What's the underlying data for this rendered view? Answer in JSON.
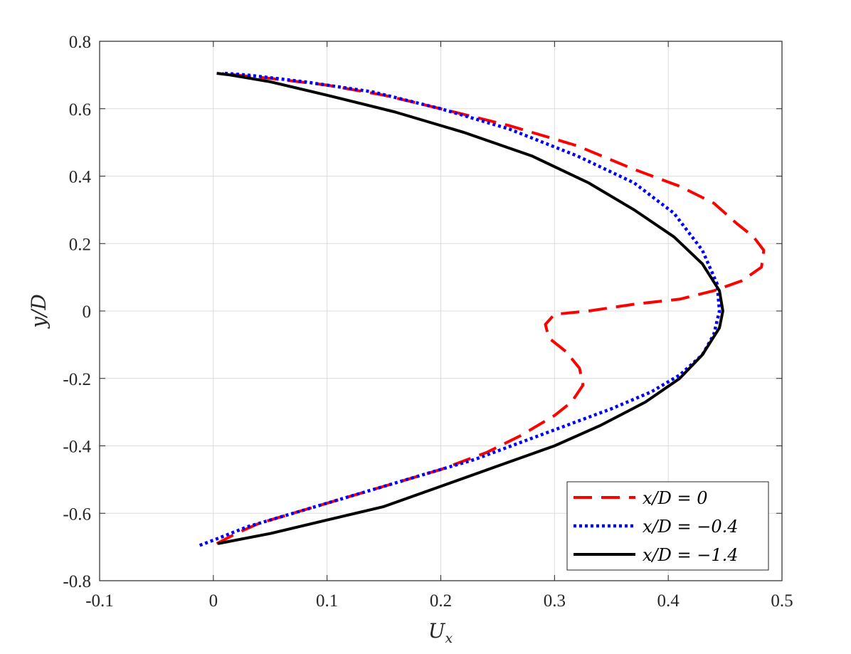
{
  "chart_data": {
    "type": "line",
    "xlabel": "U",
    "xlabel_subscript": "x",
    "ylabel": "y/D",
    "xlim": [
      -0.1,
      0.5
    ],
    "ylim": [
      -0.8,
      0.8
    ],
    "xticks": [
      -0.1,
      0,
      0.1,
      0.2,
      0.3,
      0.4,
      0.5
    ],
    "xtick_labels": [
      "-0.1",
      "0",
      "0.1",
      "0.2",
      "0.3",
      "0.4",
      "0.5"
    ],
    "yticks": [
      -0.8,
      -0.6,
      -0.4,
      -0.2,
      0,
      0.2,
      0.4,
      0.6,
      0.8
    ],
    "ytick_labels": [
      "-0.8",
      "-0.6",
      "-0.4",
      "-0.2",
      "0",
      "0.2",
      "0.4",
      "0.6",
      "0.8"
    ],
    "grid": true,
    "legend_position": "bottom-right",
    "series": [
      {
        "name": "x/D = 0",
        "color": "#ff0000",
        "style": "dashed",
        "points": [
          [
            0.003,
            -0.69
          ],
          [
            0.02,
            -0.66
          ],
          [
            0.04,
            -0.63
          ],
          [
            0.08,
            -0.59
          ],
          [
            0.12,
            -0.55
          ],
          [
            0.16,
            -0.51
          ],
          [
            0.2,
            -0.47
          ],
          [
            0.24,
            -0.42
          ],
          [
            0.27,
            -0.37
          ],
          [
            0.3,
            -0.31
          ],
          [
            0.315,
            -0.27
          ],
          [
            0.325,
            -0.22
          ],
          [
            0.322,
            -0.17
          ],
          [
            0.31,
            -0.12
          ],
          [
            0.295,
            -0.08
          ],
          [
            0.292,
            -0.04
          ],
          [
            0.3,
            -0.01
          ],
          [
            0.33,
            0.0
          ],
          [
            0.37,
            0.02
          ],
          [
            0.41,
            0.035
          ],
          [
            0.44,
            0.06
          ],
          [
            0.465,
            0.09
          ],
          [
            0.482,
            0.13
          ],
          [
            0.484,
            0.18
          ],
          [
            0.475,
            0.22
          ],
          [
            0.46,
            0.26
          ],
          [
            0.44,
            0.32
          ],
          [
            0.41,
            0.37
          ],
          [
            0.37,
            0.42
          ],
          [
            0.32,
            0.49
          ],
          [
            0.26,
            0.55
          ],
          [
            0.2,
            0.6
          ],
          [
            0.15,
            0.64
          ],
          [
            0.1,
            0.67
          ],
          [
            0.05,
            0.69
          ],
          [
            0.02,
            0.7
          ],
          [
            0.008,
            0.705
          ]
        ]
      },
      {
        "name": "x/D = −0.4",
        "color": "#0000ff",
        "style": "dotted",
        "points": [
          [
            -0.012,
            -0.695
          ],
          [
            0.0,
            -0.68
          ],
          [
            0.03,
            -0.64
          ],
          [
            0.07,
            -0.6
          ],
          [
            0.11,
            -0.56
          ],
          [
            0.15,
            -0.52
          ],
          [
            0.19,
            -0.48
          ],
          [
            0.23,
            -0.44
          ],
          [
            0.27,
            -0.39
          ],
          [
            0.31,
            -0.34
          ],
          [
            0.35,
            -0.29
          ],
          [
            0.385,
            -0.24
          ],
          [
            0.41,
            -0.19
          ],
          [
            0.43,
            -0.13
          ],
          [
            0.44,
            -0.07
          ],
          [
            0.445,
            0.0
          ],
          [
            0.443,
            0.08
          ],
          [
            0.43,
            0.18
          ],
          [
            0.405,
            0.29
          ],
          [
            0.37,
            0.38
          ],
          [
            0.32,
            0.46
          ],
          [
            0.26,
            0.54
          ],
          [
            0.2,
            0.6
          ],
          [
            0.14,
            0.65
          ],
          [
            0.08,
            0.68
          ],
          [
            0.03,
            0.7
          ],
          [
            0.01,
            0.705
          ]
        ]
      },
      {
        "name": "x/D = −1.4",
        "color": "#000000",
        "style": "solid",
        "points": [
          [
            0.004,
            -0.69
          ],
          [
            0.05,
            -0.66
          ],
          [
            0.1,
            -0.62
          ],
          [
            0.15,
            -0.58
          ],
          [
            0.2,
            -0.52
          ],
          [
            0.25,
            -0.46
          ],
          [
            0.3,
            -0.4
          ],
          [
            0.34,
            -0.34
          ],
          [
            0.38,
            -0.27
          ],
          [
            0.41,
            -0.2
          ],
          [
            0.43,
            -0.13
          ],
          [
            0.445,
            -0.05
          ],
          [
            0.448,
            0.0
          ],
          [
            0.445,
            0.06
          ],
          [
            0.43,
            0.14
          ],
          [
            0.405,
            0.22
          ],
          [
            0.37,
            0.3
          ],
          [
            0.33,
            0.38
          ],
          [
            0.28,
            0.46
          ],
          [
            0.22,
            0.53
          ],
          [
            0.16,
            0.59
          ],
          [
            0.1,
            0.64
          ],
          [
            0.05,
            0.68
          ],
          [
            0.015,
            0.7
          ],
          [
            0.003,
            0.705
          ]
        ]
      }
    ]
  }
}
